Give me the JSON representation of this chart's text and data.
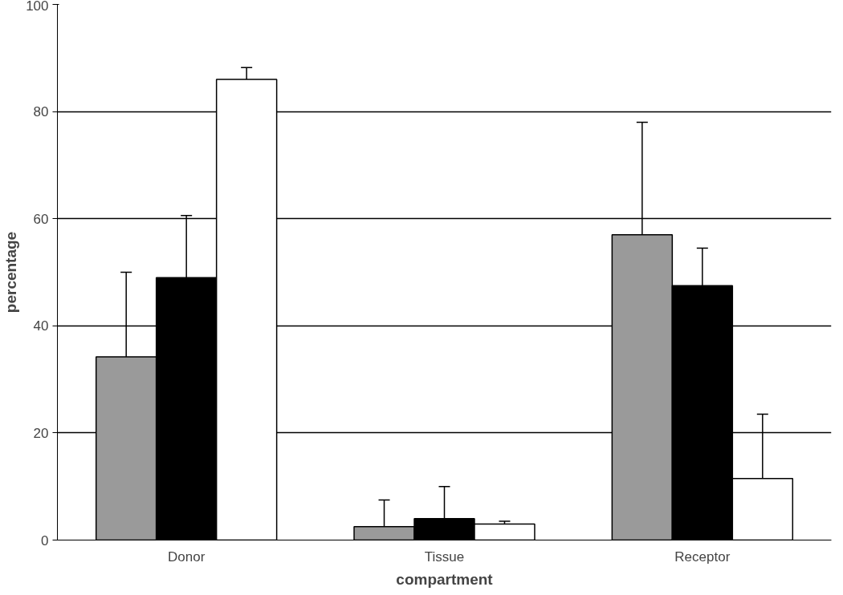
{
  "chart_data": {
    "type": "bar",
    "xlabel": "compartment",
    "ylabel": "percentage",
    "categories": [
      "Donor",
      "Tissue",
      "Receptor"
    ],
    "series": [
      {
        "color": "#9a9a9a",
        "values": [
          34.2,
          2.5,
          57
        ],
        "errors": [
          [
            34.2,
            50
          ],
          [
            2.5,
            7.5
          ],
          [
            57,
            78
          ]
        ]
      },
      {
        "color": "#000000",
        "values": [
          49,
          4,
          47.5
        ],
        "errors": [
          [
            49,
            60.6
          ],
          [
            4,
            10
          ],
          [
            47.5,
            54.5
          ]
        ]
      },
      {
        "color": "#ffffff",
        "values": [
          86,
          3,
          11.5
        ],
        "errors": [
          [
            86,
            88.2
          ],
          [
            3,
            3.5
          ],
          [
            11.5,
            23.5
          ]
        ]
      }
    ],
    "ylim": [
      0,
      100
    ],
    "yticks": [
      0,
      20,
      40,
      60,
      80,
      100
    ],
    "grid": "y"
  }
}
